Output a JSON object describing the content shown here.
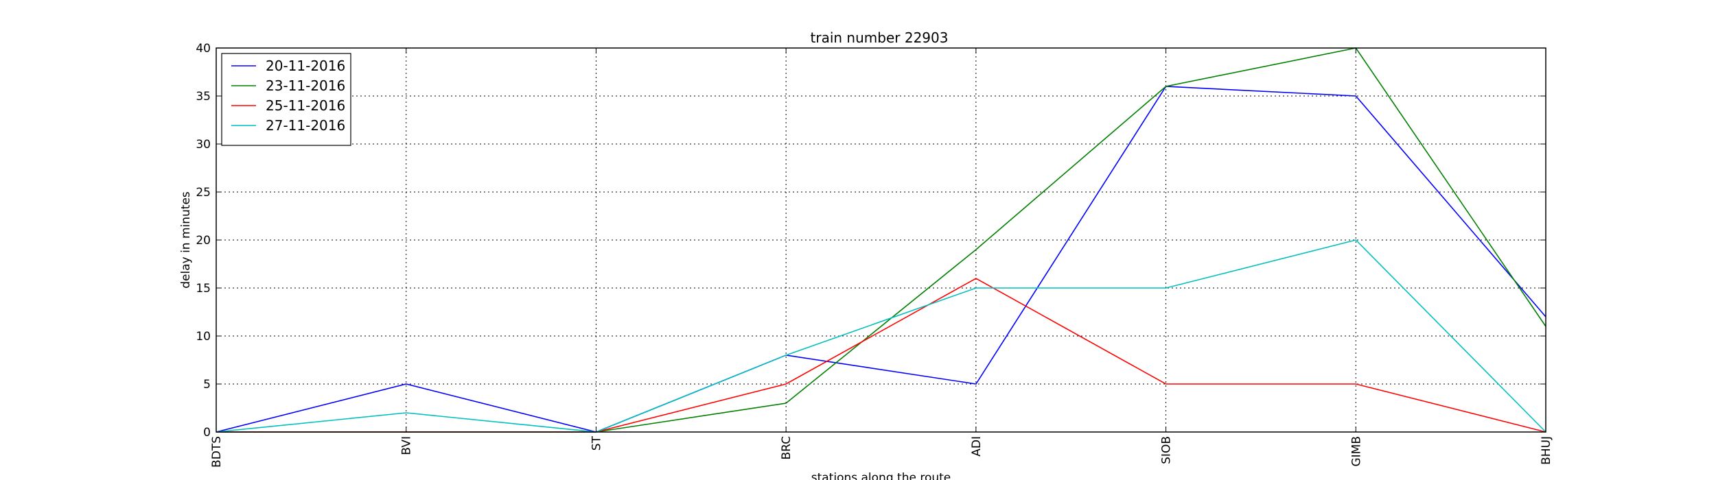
{
  "chart_data": {
    "type": "line",
    "title": "train number 22903",
    "xlabel": "stations along the route",
    "ylabel": "delay in minutes",
    "categories": [
      "BDTS",
      "BVI",
      "ST",
      "BRC",
      "ADI",
      "SIOB",
      "GIMB",
      "BHUJ"
    ],
    "ylim": [
      0,
      40
    ],
    "yticks": [
      0,
      5,
      10,
      15,
      20,
      25,
      30,
      35,
      40
    ],
    "grid": true,
    "legend_position": "top-left",
    "series": [
      {
        "name": "20-11-2016",
        "color": "#0000ff",
        "values": [
          0,
          5,
          0,
          8,
          5,
          36,
          35,
          12
        ]
      },
      {
        "name": "23-11-2016",
        "color": "#008000",
        "values": [
          0,
          0,
          0,
          3,
          19,
          36,
          40,
          11
        ]
      },
      {
        "name": "25-11-2016",
        "color": "#ff0000",
        "values": [
          0,
          0,
          0,
          5,
          16,
          5,
          5,
          0
        ]
      },
      {
        "name": "27-11-2016",
        "color": "#00bfbf",
        "values": [
          0,
          2,
          0,
          8,
          15,
          15,
          20,
          0
        ]
      }
    ]
  }
}
